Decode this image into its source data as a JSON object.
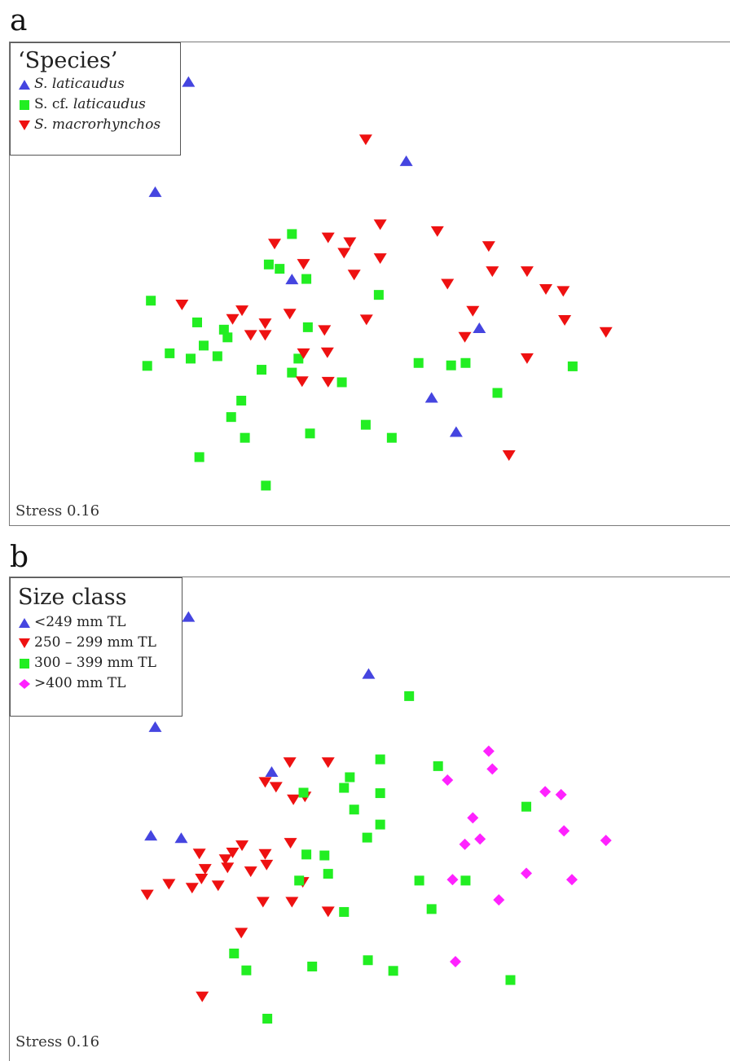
{
  "colors": {
    "blue": "#4545e0",
    "green": "#22ee22",
    "red": "#ee1111",
    "magenta": "#ff22ff"
  },
  "chart_data": [
    {
      "type": "scatter",
      "panel_label": "a",
      "legend": {
        "title": "‘Species’",
        "placement": "top-left",
        "entries": [
          {
            "name": "S. laticaudus",
            "marker": "triangle-up",
            "color": "#4545e0"
          },
          {
            "name": "S. cf. laticaudus",
            "marker": "square",
            "color": "#22ee22"
          },
          {
            "name": "S. macrorhynchos",
            "marker": "triangle-down",
            "color": "#ee1111"
          }
        ]
      },
      "annotation": "Stress 0.16",
      "axes": "none",
      "xlim": [
        0,
        1
      ],
      "ylim": [
        0,
        1
      ],
      "series": [
        {
          "name": "S. laticaudus",
          "marker": "triangle-up",
          "color": "#4545e0",
          "points": [
            [
              0.247,
              0.918
            ],
            [
              0.201,
              0.69
            ],
            [
              0.548,
              0.754
            ],
            [
              0.39,
              0.509
            ],
            [
              0.649,
              0.408
            ],
            [
              0.583,
              0.264
            ],
            [
              0.617,
              0.193
            ]
          ]
        },
        {
          "name": "S. cf. laticaudus",
          "marker": "square",
          "color": "#22ee22",
          "points": [
            [
              0.39,
              0.603
            ],
            [
              0.358,
              0.54
            ],
            [
              0.373,
              0.531
            ],
            [
              0.41,
              0.51
            ],
            [
              0.51,
              0.477
            ],
            [
              0.195,
              0.465
            ],
            [
              0.259,
              0.42
            ],
            [
              0.296,
              0.405
            ],
            [
              0.301,
              0.389
            ],
            [
              0.268,
              0.372
            ],
            [
              0.412,
              0.41
            ],
            [
              0.221,
              0.356
            ],
            [
              0.25,
              0.345
            ],
            [
              0.287,
              0.35
            ],
            [
              0.399,
              0.345
            ],
            [
              0.19,
              0.33
            ],
            [
              0.348,
              0.322
            ],
            [
              0.39,
              0.316
            ],
            [
              0.459,
              0.296
            ],
            [
              0.565,
              0.336
            ],
            [
              0.61,
              0.331
            ],
            [
              0.63,
              0.336
            ],
            [
              0.778,
              0.329
            ],
            [
              0.674,
              0.274
            ],
            [
              0.32,
              0.258
            ],
            [
              0.306,
              0.224
            ],
            [
              0.325,
              0.181
            ],
            [
              0.415,
              0.19
            ],
            [
              0.492,
              0.208
            ],
            [
              0.528,
              0.181
            ],
            [
              0.262,
              0.141
            ],
            [
              0.354,
              0.082
            ]
          ]
        },
        {
          "name": "S. macrorhynchos",
          "marker": "triangle-down",
          "color": "#ee1111",
          "points": [
            [
              0.492,
              0.799
            ],
            [
              0.512,
              0.623
            ],
            [
              0.591,
              0.609
            ],
            [
              0.44,
              0.596
            ],
            [
              0.47,
              0.586
            ],
            [
              0.366,
              0.583
            ],
            [
              0.462,
              0.564
            ],
            [
              0.662,
              0.578
            ],
            [
              0.406,
              0.541
            ],
            [
              0.512,
              0.553
            ],
            [
              0.476,
              0.519
            ],
            [
              0.667,
              0.526
            ],
            [
              0.715,
              0.526
            ],
            [
              0.605,
              0.5
            ],
            [
              0.741,
              0.489
            ],
            [
              0.765,
              0.485
            ],
            [
              0.238,
              0.457
            ],
            [
              0.321,
              0.445
            ],
            [
              0.308,
              0.427
            ],
            [
              0.387,
              0.438
            ],
            [
              0.64,
              0.444
            ],
            [
              0.493,
              0.426
            ],
            [
              0.353,
              0.418
            ],
            [
              0.435,
              0.404
            ],
            [
              0.333,
              0.394
            ],
            [
              0.767,
              0.425
            ],
            [
              0.824,
              0.4
            ],
            [
              0.629,
              0.39
            ],
            [
              0.353,
              0.394
            ],
            [
              0.406,
              0.356
            ],
            [
              0.439,
              0.358
            ],
            [
              0.715,
              0.346
            ],
            [
              0.404,
              0.298
            ],
            [
              0.44,
              0.297
            ],
            [
              0.69,
              0.145
            ]
          ]
        }
      ]
    },
    {
      "type": "scatter",
      "panel_label": "b",
      "legend": {
        "title": "Size class",
        "placement": "top-left",
        "entries": [
          {
            "name": "<249 mm TL",
            "marker": "triangle-up",
            "color": "#4545e0"
          },
          {
            "name": "250 – 299 mm TL",
            "marker": "triangle-down",
            "color": "#ee1111"
          },
          {
            "name": "300 – 399 mm TL",
            "marker": "square",
            "color": "#22ee22"
          },
          {
            "name": ">400 mm TL",
            "marker": "diamond",
            "color": "#ff22ff"
          }
        ]
      },
      "annotation": "Stress 0.16",
      "axes": "none",
      "xlim": [
        0,
        1
      ],
      "ylim": [
        0,
        1
      ],
      "series": [
        {
          "name": "<249 mm TL",
          "marker": "triangle-up",
          "color": "#4545e0",
          "points": [
            [
              0.247,
              0.918
            ],
            [
              0.496,
              0.8
            ],
            [
              0.201,
              0.69
            ],
            [
              0.362,
              0.597
            ],
            [
              0.195,
              0.465
            ],
            [
              0.237,
              0.46
            ]
          ]
        },
        {
          "name": "250 – 299 mm TL",
          "marker": "triangle-down",
          "color": "#ee1111",
          "points": [
            [
              0.387,
              0.617
            ],
            [
              0.44,
              0.617
            ],
            [
              0.353,
              0.576
            ],
            [
              0.368,
              0.566
            ],
            [
              0.392,
              0.54
            ],
            [
              0.408,
              0.546
            ],
            [
              0.388,
              0.45
            ],
            [
              0.321,
              0.445
            ],
            [
              0.262,
              0.428
            ],
            [
              0.308,
              0.43
            ],
            [
              0.353,
              0.427
            ],
            [
              0.298,
              0.416
            ],
            [
              0.301,
              0.399
            ],
            [
              0.355,
              0.405
            ],
            [
              0.27,
              0.396
            ],
            [
              0.333,
              0.391
            ],
            [
              0.265,
              0.376
            ],
            [
              0.22,
              0.365
            ],
            [
              0.19,
              0.343
            ],
            [
              0.252,
              0.357
            ],
            [
              0.288,
              0.362
            ],
            [
              0.405,
              0.369
            ],
            [
              0.35,
              0.328
            ],
            [
              0.39,
              0.328
            ],
            [
              0.44,
              0.308
            ],
            [
              0.32,
              0.264
            ],
            [
              0.266,
              0.132
            ]
          ]
        },
        {
          "name": "300 – 399 mm TL",
          "marker": "square",
          "color": "#22ee22",
          "points": [
            [
              0.552,
              0.754
            ],
            [
              0.512,
              0.623
            ],
            [
              0.592,
              0.609
            ],
            [
              0.47,
              0.586
            ],
            [
              0.462,
              0.564
            ],
            [
              0.512,
              0.553
            ],
            [
              0.406,
              0.554
            ],
            [
              0.476,
              0.519
            ],
            [
              0.714,
              0.525
            ],
            [
              0.512,
              0.488
            ],
            [
              0.494,
              0.461
            ],
            [
              0.41,
              0.426
            ],
            [
              0.435,
              0.424
            ],
            [
              0.44,
              0.386
            ],
            [
              0.4,
              0.372
            ],
            [
              0.566,
              0.372
            ],
            [
              0.63,
              0.372
            ],
            [
              0.462,
              0.307
            ],
            [
              0.583,
              0.313
            ],
            [
              0.31,
              0.221
            ],
            [
              0.495,
              0.207
            ],
            [
              0.418,
              0.194
            ],
            [
              0.53,
              0.185
            ],
            [
              0.327,
              0.186
            ],
            [
              0.692,
              0.166
            ],
            [
              0.356,
              0.086
            ]
          ]
        },
        {
          "name": ">400 mm TL",
          "marker": "diamond",
          "color": "#ff22ff",
          "points": [
            [
              0.662,
              0.64
            ],
            [
              0.605,
              0.58
            ],
            [
              0.667,
              0.603
            ],
            [
              0.74,
              0.556
            ],
            [
              0.762,
              0.55
            ],
            [
              0.64,
              0.502
            ],
            [
              0.766,
              0.475
            ],
            [
              0.65,
              0.458
            ],
            [
              0.629,
              0.447
            ],
            [
              0.824,
              0.455
            ],
            [
              0.714,
              0.387
            ],
            [
              0.612,
              0.374
            ],
            [
              0.777,
              0.374
            ],
            [
              0.676,
              0.332
            ],
            [
              0.616,
              0.204
            ]
          ]
        }
      ]
    }
  ]
}
